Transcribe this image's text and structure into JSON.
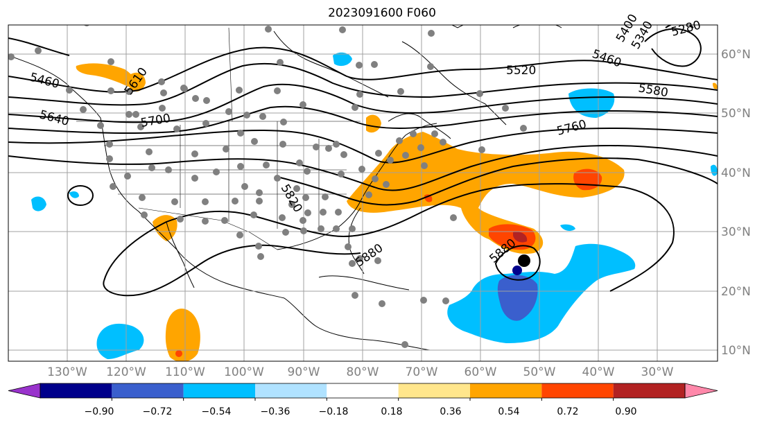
{
  "title": "2023091600 F060",
  "latitude_labels": [
    "60°N",
    "50°N",
    "40°N",
    "30°N",
    "20°N",
    "10°N"
  ],
  "longitude_labels": [
    "130°W",
    "120°W",
    "110°W",
    "100°W",
    "90°W",
    "80°W",
    "70°W",
    "60°W",
    "50°W",
    "40°W",
    "30°W"
  ],
  "contour_labels": [
    "5280",
    "5340",
    "5400",
    "5460",
    "5460",
    "5520",
    "5580",
    "5640",
    "5700",
    "5760",
    "5820",
    "5880",
    "5880",
    "5610"
  ],
  "colorbar": {
    "tick_labels": [
      "−0.90",
      "−0.72",
      "−0.54",
      "−0.36",
      "−0.18",
      "0.18",
      "0.36",
      "0.54",
      "0.72",
      "0.90"
    ],
    "colors": [
      "#9933cc",
      "#00008b",
      "#3a5fcd",
      "#00bfff",
      "#b0e2ff",
      "#ffffff",
      "#ffe68c",
      "#ffa500",
      "#ff4500",
      "#b22222",
      "#ff88aa"
    ],
    "extend": "both"
  },
  "layers": {
    "filled_field": "shaded anomaly field",
    "contours": "black geopotential height contours",
    "markers": "gray station dots",
    "storm_center": "black filled circle"
  }
}
